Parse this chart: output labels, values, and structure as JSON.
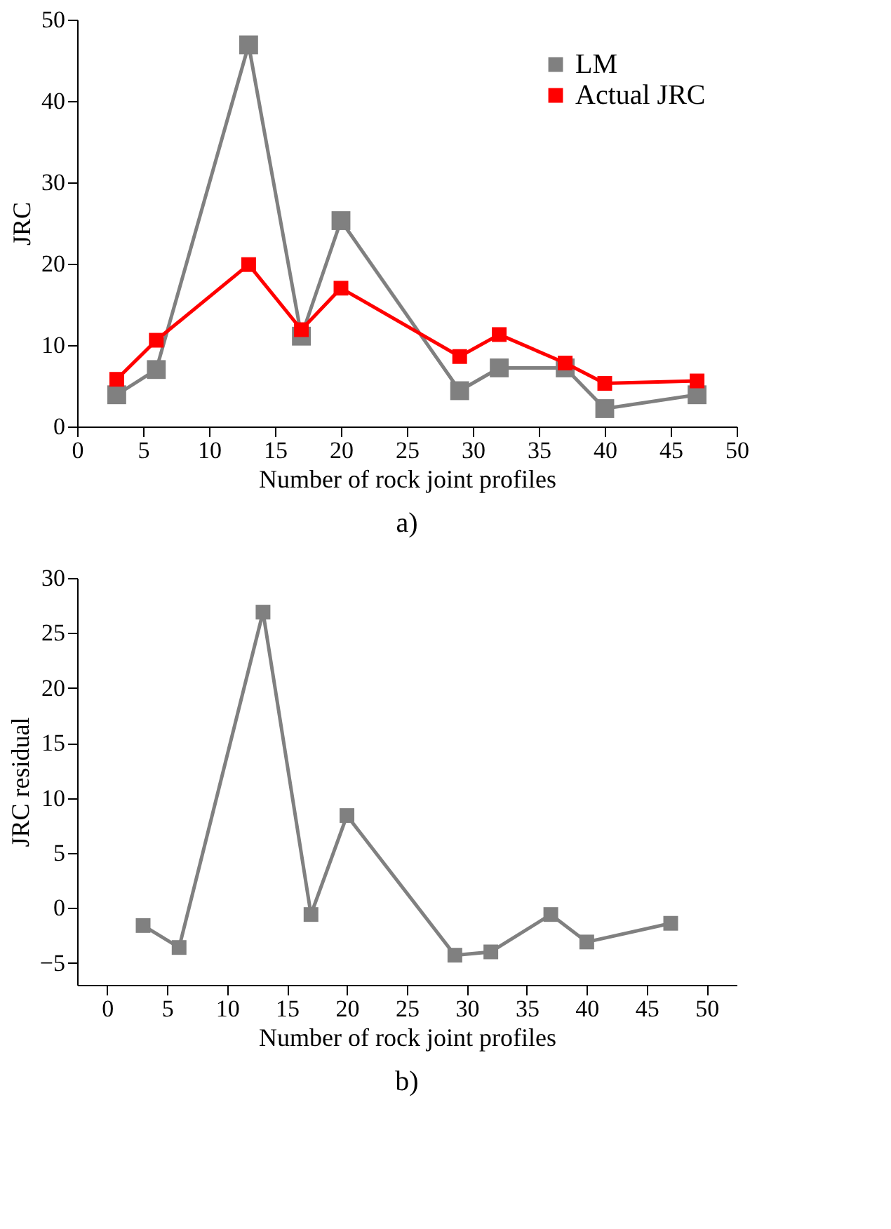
{
  "chart_data": [
    {
      "type": "line",
      "xlabel": "Number of rock joint profiles",
      "ylabel": "JRC",
      "x": [
        3,
        6,
        13,
        17,
        20,
        29,
        32,
        37,
        40,
        47
      ],
      "series": [
        {
          "name": "LM",
          "color": "#808080",
          "values": [
            3.9,
            7.0,
            46.9,
            11.1,
            25.3,
            4.4,
            7.2,
            7.2,
            2.2,
            3.9
          ]
        },
        {
          "name": "Actual JRC",
          "color": "#ff0000",
          "values": [
            5.8,
            10.6,
            19.9,
            11.9,
            17.0,
            8.6,
            11.3,
            7.8,
            5.3,
            5.6
          ]
        }
      ],
      "xlim": [
        0,
        50
      ],
      "xticks": [
        0,
        5,
        10,
        15,
        20,
        25,
        30,
        35,
        40,
        45,
        50
      ],
      "ylim": [
        0,
        50
      ],
      "yticks": [
        0,
        10,
        20,
        30,
        40,
        50
      ],
      "marker": "square",
      "line_style": "solid",
      "legend": "top right",
      "grid": false,
      "annotations": [
        "a)"
      ]
    },
    {
      "type": "line",
      "xlabel": "Number of rock joint profiles",
      "ylabel": "JRC residual",
      "x": [
        3,
        6,
        13,
        17,
        20,
        29,
        32,
        37,
        40,
        47
      ],
      "series": [
        {
          "name": "LM",
          "color": "#808080",
          "values": [
            -1.6,
            -3.6,
            26.9,
            -0.6,
            8.4,
            -4.3,
            -4.0,
            -0.6,
            -3.1,
            -1.4
          ]
        }
      ],
      "xlim": [
        -2.5,
        52.5
      ],
      "xticks": [
        0,
        5,
        10,
        15,
        20,
        25,
        30,
        35,
        40,
        45,
        50
      ],
      "ylim": [
        -7,
        30
      ],
      "yticks": [
        -5,
        0,
        5,
        10,
        15,
        20,
        25,
        30
      ],
      "marker": "square",
      "line_style": "solid",
      "legend": "top right",
      "grid": false,
      "annotations": [
        "b)"
      ]
    }
  ]
}
